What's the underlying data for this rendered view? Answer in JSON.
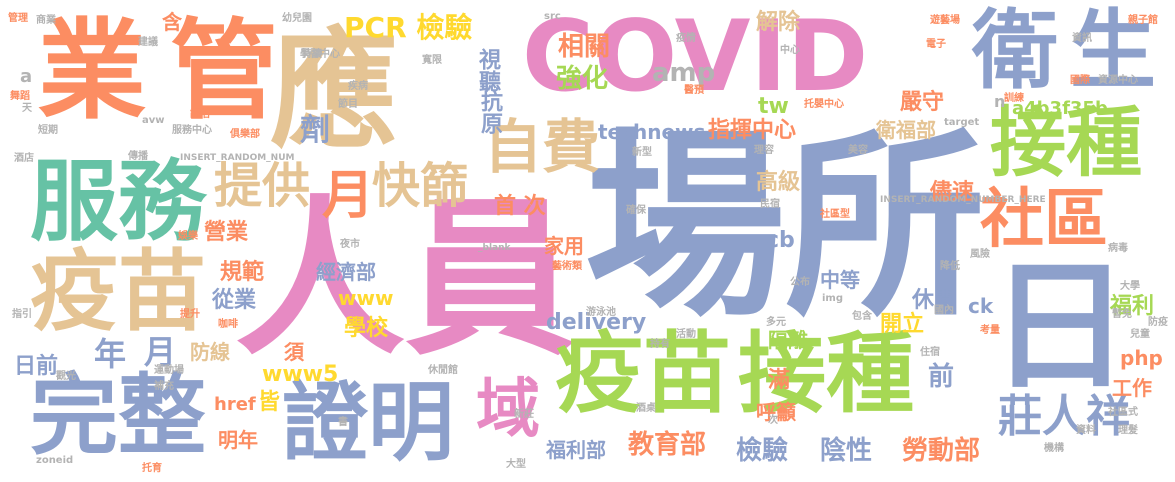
{
  "palette": {
    "orange": "#fc8d62",
    "blue": "#8da0cb",
    "pink": "#e78ac3",
    "green": "#a6d854",
    "yellow": "#ffd92f",
    "tan": "#e5c494",
    "teal": "#66c2a5",
    "gray": "#b3b3b3"
  },
  "words": {
    "w_ye": "業",
    "w_guan": "管",
    "w_ying": "應",
    "w_covid": "COVID",
    "w_wei": "衛",
    "w_sheng": "生",
    "w_changsuo": "場所",
    "w_renyuan": "人員",
    "w_fuwu": "服務",
    "w_yimiao_left": "疫苗",
    "w_wanzheng": "完整",
    "w_zhengming": "證明",
    "w_yu": "域",
    "w_yimiao_mid": "疫苗",
    "w_jiezhong_mid": "接種",
    "w_jiezhong_right": "接種",
    "w_shequ": "社區",
    "w_ri": "日",
    "w_zifei": "自費",
    "w_tigong": "提供",
    "w_yue_big": "月",
    "w_kuaishai": "快篩",
    "w_pcr": "PCR 檢驗",
    "w_xiangguan": "相關",
    "w_jiechu": "解除",
    "w_qianghua": "強化",
    "w_amp": "amp",
    "w_shiting": "視聽",
    "w_kangyuan": "抗原",
    "w_ji": "劑",
    "w_technews": "technews",
    "w_zhihui": "指揮中心",
    "w_tw": "tw",
    "w_weifubu": "衛福部",
    "w_yanshou": "嚴守",
    "w_hash": "a4b3f35b",
    "w_n": "n",
    "w_shouci": "首 次",
    "w_gaoji": "高級",
    "w_jinsu": "儘速",
    "w_yingye": "營業",
    "w_jiayong": "家用",
    "w_cb": "cb",
    "w_guifan": "規範",
    "w_jingji": "經濟部",
    "w_www": "www",
    "w_zhongdeng": "中等",
    "w_nian": "年",
    "w_yue_small": "月",
    "w_congye": "從業",
    "w_xuexiao": "學校",
    "w_delivery": "delivery",
    "w_kaili": "開立",
    "w_xiuxian": "休閒",
    "w_fuli": "福利",
    "w_ck": "ck",
    "w_riqian": "日前",
    "w_fangxian": "防線",
    "w_xu": "須",
    "w_www5": "www5",
    "w_geli": "隔離",
    "w_qian": "前",
    "w_php": "php",
    "w_man": "滿",
    "w_gongzuo": "工作",
    "w_href": "href",
    "w_jie": "皆",
    "w_mingnian": "明年",
    "w_huyu": "呼籲",
    "w_zhuangrenxiang": "莊人祥",
    "w_fulibu": "福利部",
    "w_jiaoyubu": "教育部",
    "w_jianyan": "檢驗",
    "w_yinxing": "陰性",
    "w_laodong": "勞動部",
    "w_han": "含",
    "w_gaoji2": "高級",
    "w_youer": "幼兒園",
    "w_chixu": "持續",
    "w_qinzi": "親子館",
    "w_youyi": "遊藝場",
    "w_xinxing": "新型",
    "w_zhongxin": "中心",
    "w_yizhen": "疫情",
    "w_guanli": "管理",
    "w_shangye": "商業",
    "w_insert": "INSERT_RANDOM_NUMBER_HERE",
    "w_insert2": "INSERT_RANDOM_NUM",
    "w_blank": "_blank",
    "w_target": "target",
    "w_img": "img",
    "w_src": "src",
    "w_zeneid": "zoneid",
    "w_avw": "avw",
    "w_a": "a",
    "w_yule": "娛樂",
    "w_lirong": "理容",
    "w_jiudian": "酒店",
    "w_jiuba": "酒吧",
    "w_ktv": "歌唱",
    "w_yeshi": "夜市",
    "w_wuting": "舞廳",
    "w_tiyu": "體育",
    "w_guanguang": "觀光",
    "w_yiyuan": "醫院",
    "w_changsuo2": "場所",
    "w_zhiyin": "指引",
    "w_renti": "人體",
    "w_biaoyan": "表演",
    "w_shezi": "設施",
    "w_bangong": "辦公",
    "w_yingyuan": "影院",
    "w_bowu": "博物",
    "w_tushu": "圖書",
    "w_kaifang": "開放",
    "w_yiliao": "醫療",
    "w_dianying": "電影",
    "w_jianshen": "健身",
    "w_youyong": "游泳池",
    "w_duoyuan": "多元",
    "w_gongbu": "公布",
    "w_jiance": "監測",
    "w_kaoliang": "考量",
    "w_baohan": "包含",
    "w_guonei": "國內",
    "w_huodong": "活動",
    "w_chiyou": "持有",
    "w_ertong": "兒童",
    "w_fangyi": "防疫",
    "w_buchong": "補充",
    "w_peihe": "配合",
    "w_xiuxianjia": "休閒館",
    "w_xinzhuang": "新莊",
    "w_jiuzhuo": "酒桌",
    "w_jiagong": "加工",
    "w_daxing": "大型",
    "w_tuoyu": "托育",
    "w_fengxian": "風險",
    "w_jiangdi": "降低",
    "w_bingdu": "病毒",
    "w_daxue": "大學",
    "w_shangjia": "商家",
    "w_shehui": "社區式",
    "w_ziliao": "資料",
    "w_lisheng": "理髮",
    "w_jigou": "機構",
    "w_jiaoxue": "教學",
    "w_zanmian": "暫免",
    "w_bubai": "步擺",
    "w_zhaopin": "照片",
    "w_jiyi": "技藝",
    "w_hezuo": "合作",
    "w_fangshi": "方式",
    "w_yiyu": "醫預",
    "w_dianzi": "電子",
    "w_zixun": "資訊",
    "w_guoji": "國際",
    "w_ziyuan": "資源中心",
    "w_yunfei": "孕婦",
    "w_jianyi": "建議",
    "w_pinggu": "評估",
    "w_wudao": "舞蹈",
    "w_tian": "天",
    "w_duanqi": "短期",
    "w_fuwuzhongxin": "服務中心",
    "w_chuanbo": "傳播",
    "w_julebu": "俱樂部",
    "w_jiachang": "茶藝",
    "w_tisheng": "提升",
    "w_kafei": "咖啡",
    "w_guanyu": "觀光",
    "w_yundong": "運動場",
    "w_chanpin": "產業",
    "w_jianyanguo": "檢驗",
    "w_yimin": "移民",
    "w_xunlian": "訓練",
    "w_geren": "個人",
    "w_meirong": "美容",
    "w_zhuanye": "專業",
    "w_shipin": "食品",
    "w_tuoying": "托嬰中心",
    "w_guanhuai": "寬限",
    "w_jiebing": "疾病",
    "w_jiedian": "節目",
    "w_xuexizhongxin": "學習中心",
    "w_ruchang": "入場",
    "w_weisheng2": "衛生",
    "w_queren": "確保",
    "w_yanjiu": "研究",
    "w_minqi": "民宿",
    "w_shiye": "事業",
    "w_shequxing": "社區型",
    "w_shoupiao": "售票",
    "w_yishu": "藝術類",
    "w_zhusu": "住宿",
    "w_yizhong": "醫中",
    "w_weike": "微客",
    "w_gui": "規",
    "w_shu": "書",
    "w_ci": "次"
  }
}
